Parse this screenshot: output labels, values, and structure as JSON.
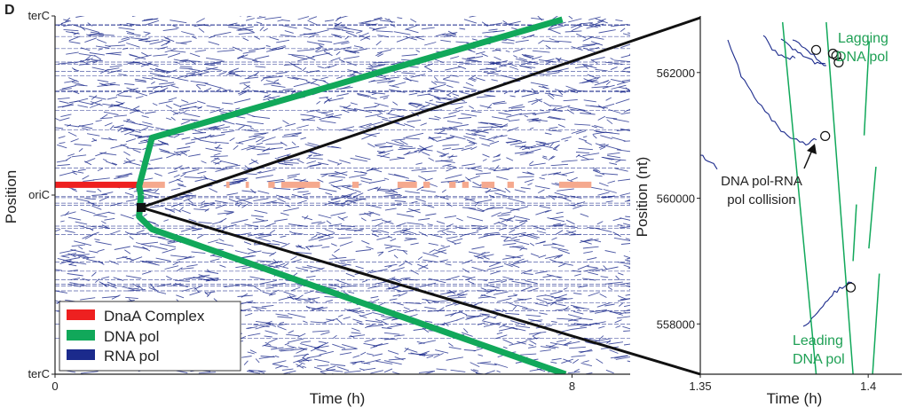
{
  "panel_label": "D",
  "colors": {
    "dnaA": "#ee2020",
    "dnaA_light": "#f5a98e",
    "dnaPol": "#11a85a",
    "rnaPol": "#1b2a8c",
    "zoom_line": "#111111",
    "green_text": "#1fa055"
  },
  "chart_data": [
    {
      "id": "main",
      "type": "line",
      "xlabel": "Time (h)",
      "ylabel": "Position",
      "xlim": [
        0,
        8.9
      ],
      "x_ticks": [
        {
          "value": 0,
          "label": "0"
        },
        {
          "value": 8,
          "label": "8"
        }
      ],
      "y_ticks": [
        {
          "value": 1,
          "label": "terC"
        },
        {
          "value": 0,
          "label": "oriC"
        },
        {
          "value": -1,
          "label": "terC"
        }
      ],
      "ylim": [
        -1,
        1
      ],
      "legend": {
        "placement": "bottom-left",
        "entries": [
          {
            "label": "DnaA Complex",
            "color": "#ee2020"
          },
          {
            "label": "DNA pol",
            "color": "#11a85a"
          },
          {
            "label": "RNA pol",
            "color": "#1b2a8c"
          }
        ]
      },
      "series": [
        {
          "label": "DNA pol",
          "color": "#11a85a",
          "x": [
            7.85,
            1.5,
            1.3,
            1.33
          ],
          "y": [
            0.98,
            0.32,
            0.05,
            0.0
          ]
        },
        {
          "label": "DNA pol",
          "color": "#11a85a",
          "x": [
            7.9,
            1.5,
            1.3,
            1.33
          ],
          "y": [
            -1.0,
            -0.19,
            -0.12,
            0.0
          ]
        }
      ],
      "dnaA_complex": {
        "solid_span": [
          0,
          1.3
        ],
        "y": 0.06,
        "intermittent_spans": [
          [
            1.3,
            1.7
          ],
          [
            2.65,
            2.7
          ],
          [
            2.95,
            3.0
          ],
          [
            3.3,
            3.4
          ],
          [
            3.5,
            4.1
          ],
          [
            4.6,
            4.7
          ],
          [
            5.3,
            5.6
          ],
          [
            5.7,
            5.8
          ],
          [
            6.1,
            6.2
          ],
          [
            6.3,
            6.4
          ],
          [
            6.6,
            6.8
          ],
          [
            7.0,
            7.1
          ],
          [
            7.8,
            8.3
          ]
        ]
      }
    },
    {
      "id": "zoom",
      "type": "line",
      "xlabel": "Time (h)",
      "ylabel": "Position (nt)",
      "xlim": [
        1.35,
        1.41
      ],
      "ylim": [
        557200,
        562900
      ],
      "x_ticks": [
        {
          "value": 1.35,
          "label": "1.35"
        },
        {
          "value": 1.4,
          "label": "1.4"
        }
      ],
      "y_ticks": [
        {
          "value": 558000,
          "label": "558000"
        },
        {
          "value": 560000,
          "label": "560000"
        },
        {
          "value": 562000,
          "label": "562000"
        }
      ],
      "annotations": [
        {
          "text_lines": [
            "Lagging",
            "DNA pol"
          ],
          "color": "#1fa055"
        },
        {
          "text_lines": [
            "Leading",
            "DNA pol"
          ],
          "color": "#1fa055"
        },
        {
          "text_lines": [
            "DNA pol-RNA",
            "pol collision"
          ],
          "color": "#222222"
        }
      ],
      "green_segments": [
        {
          "x": [
            1.3875,
            1.3955
          ],
          "y": [
            562800,
            557200
          ]
        },
        {
          "x": [
            1.3745,
            1.3845
          ],
          "y": [
            562800,
            557200
          ]
        },
        {
          "x": [
            1.4003,
            1.3988
          ],
          "y": [
            562500,
            561000
          ]
        },
        {
          "x": [
            1.4023,
            1.4002
          ],
          "y": [
            560500,
            559200
          ]
        },
        {
          "x": [
            1.4033,
            1.4013
          ],
          "y": [
            558800,
            557200
          ]
        },
        {
          "x": [
            1.3965,
            1.3955
          ],
          "y": [
            559900,
            559000
          ]
        }
      ],
      "collisions": [
        {
          "x": 1.3845,
          "y": 562360
        },
        {
          "x": 1.3905,
          "y": 562270
        },
        {
          "x": 1.3912,
          "y": 562160
        },
        {
          "x": 1.3895,
          "y": 562300
        },
        {
          "x": 1.3872,
          "y": 560990
        },
        {
          "x": 1.3948,
          "y": 558580
        }
      ]
    }
  ]
}
